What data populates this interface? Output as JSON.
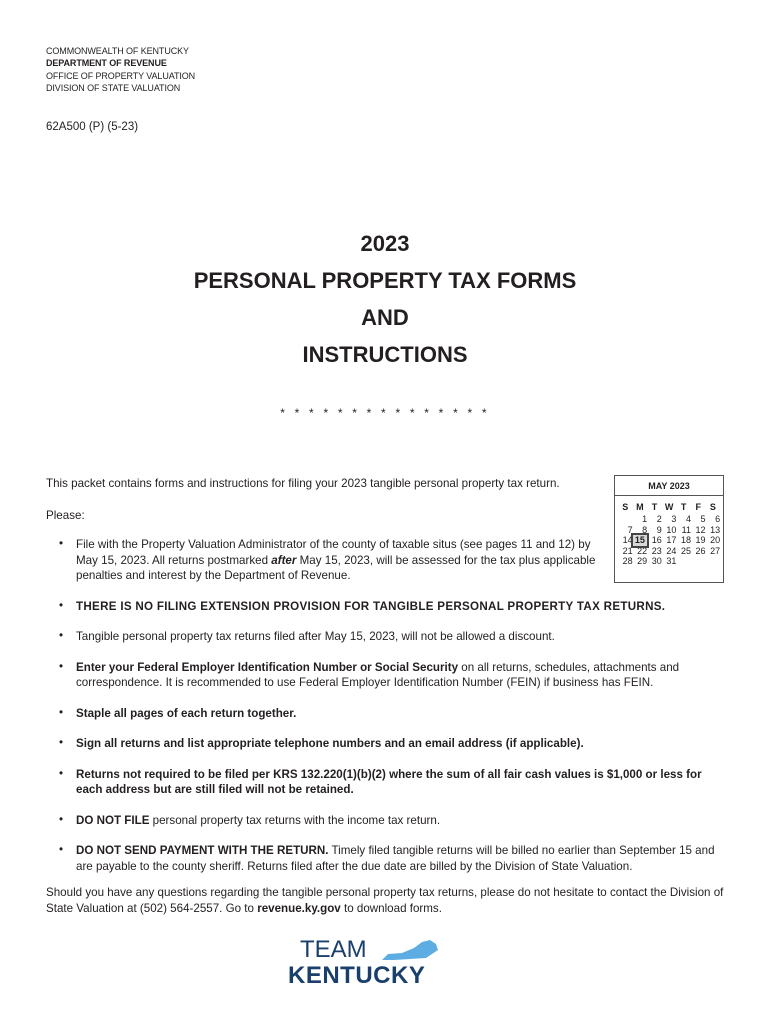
{
  "header": {
    "lines": [
      "COMMONWEALTH OF KENTUCKY",
      "DEPARTMENT OF REVENUE",
      "OFFICE OF PROPERTY VALUATION",
      "DIVISION OF STATE VALUATION"
    ]
  },
  "form_number": "62A500 (P) (5-23)",
  "title": [
    "2023",
    "PERSONAL PROPERTY TAX FORMS",
    "AND",
    "INSTRUCTIONS"
  ],
  "stars": "* * * * * * * * * * * * * * *",
  "intro": "This packet contains forms and instructions for filing your 2023 tangible personal property tax return.",
  "please": "Please:",
  "bullet_char": "•",
  "bullets": [
    {
      "a": "File with the Property Valuation Administrator of the county of taxable situs (see pages 11 and 12) by May 15, 2023. All returns postmarked ",
      "b": "after",
      "c": " May 15, 2023, will be assessed for the tax plus applicable penalties and interest by the Department of Revenue."
    },
    {
      "a": "THERE IS NO FILING EXTENSION PROVISION FOR TANGIBLE PERSONAL PROPERTY TAX RETURNS."
    },
    {
      "a": "Tangible personal property tax returns filed after May 15, 2023, will not be allowed a discount."
    },
    {
      "a": "Enter your Federal Employer Identification Number or Social Security",
      "b": " on all returns, schedules, attachments and correspondence.  It is recommended to use Federal Employer Identification Number (FEIN) if business has FEIN."
    },
    {
      "a": "Staple all pages of each return together."
    },
    {
      "a": "Sign all returns and list appropriate telephone numbers and an email address (if applicable)."
    },
    {
      "a": "Returns not required to be filed per KRS 132.220(1)(b)(2) where the sum of all fair cash values is $1,000 or less for each address but are still filed will not be retained."
    },
    {
      "a": "DO NOT FILE",
      "b": " personal property tax returns with the income tax return."
    },
    {
      "a": "DO NOT SEND PAYMENT WITH THE RETURN.",
      "b": " Timely filed tangible returns will be billed no earlier than September 15 and are payable to the county sheriff.  Returns filed after the due date are billed by the Division of State Valuation."
    }
  ],
  "closing": {
    "a": "Should you have any questions regarding the tangible  personal property tax returns, please do not hesitate to contact the Division of State Valuation at (502) 564-2557. Go to ",
    "link": "revenue.ky.gov",
    "b": " to download forms."
  },
  "calendar": {
    "month": "MAY 2023",
    "dow": [
      "S",
      "M",
      "T",
      "W",
      "T",
      "F",
      "S"
    ],
    "weeks": [
      [
        "",
        "1",
        "2",
        "3",
        "4",
        "5",
        "6"
      ],
      [
        "7",
        "8",
        "9",
        "10",
        "11",
        "12",
        "13"
      ],
      [
        "14",
        "15",
        "16",
        "17",
        "18",
        "19",
        "20"
      ],
      [
        "21",
        "22",
        "23",
        "24",
        "25",
        "26",
        "27"
      ],
      [
        "28",
        "29",
        "30",
        "31",
        "",
        "",
        ""
      ]
    ],
    "highlight": "15"
  },
  "logo": {
    "team": "TEAM",
    "kentucky": "KENTUCKY",
    "colors": {
      "navy": "#1b3f6b",
      "blue": "#5dade2"
    }
  }
}
